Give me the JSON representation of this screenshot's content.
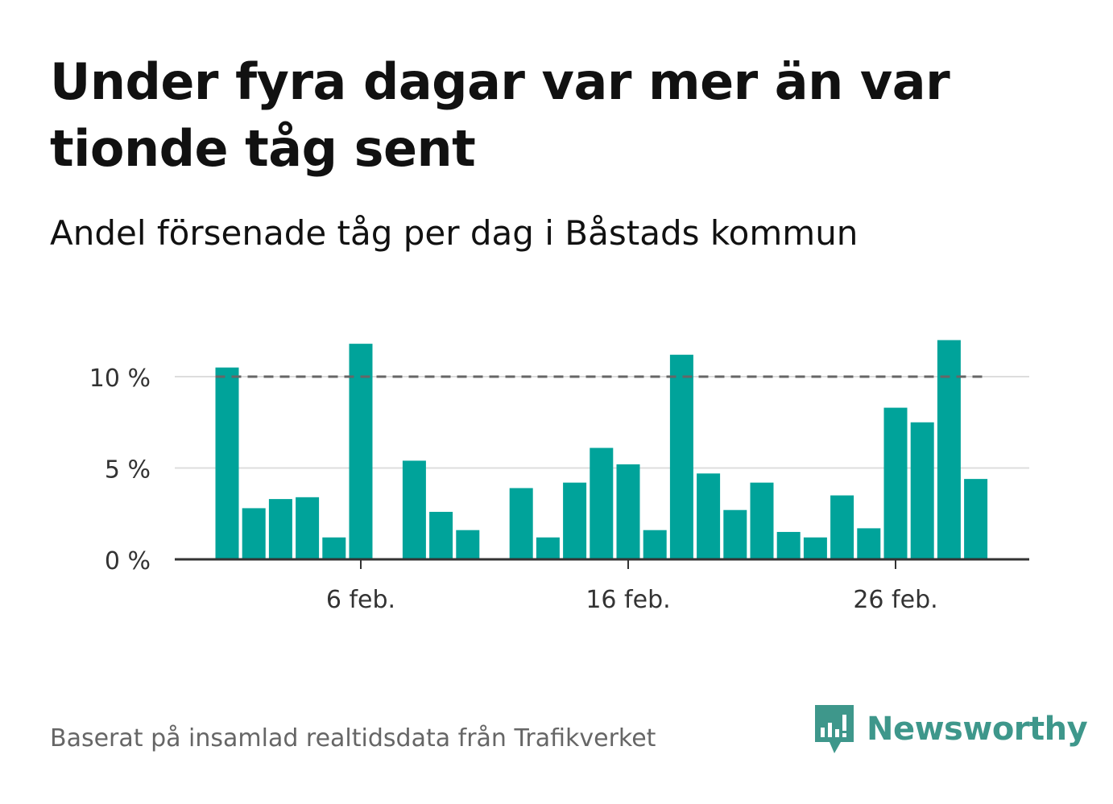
{
  "title": "Under fyra dagar var mer än var tionde tåg sent",
  "subtitle": "Andel försenade tåg per dag i Båstads kommun",
  "source": "Baserat på insamlad realtidsdata från Trafikverket",
  "logo": {
    "text": "Newsworthy",
    "icon": "newsworthy-bar-speech-icon"
  },
  "colors": {
    "bar": "#00a39a",
    "reference_line": "#666666",
    "grid": "#dddddd",
    "axis": "#333333",
    "logo": "#3e978b"
  },
  "chart_data": {
    "type": "bar",
    "x": [
      "2024-02-01",
      "2024-02-02",
      "2024-02-03",
      "2024-02-04",
      "2024-02-05",
      "2024-02-06",
      "2024-02-07",
      "2024-02-08",
      "2024-02-09",
      "2024-02-10",
      "2024-02-11",
      "2024-02-12",
      "2024-02-13",
      "2024-02-14",
      "2024-02-15",
      "2024-02-16",
      "2024-02-17",
      "2024-02-18",
      "2024-02-19",
      "2024-02-20",
      "2024-02-21",
      "2024-02-22",
      "2024-02-23",
      "2024-02-24",
      "2024-02-25",
      "2024-02-26",
      "2024-02-27",
      "2024-02-28",
      "2024-02-29"
    ],
    "values": [
      10.5,
      2.8,
      3.3,
      3.4,
      1.2,
      11.8,
      null,
      5.4,
      2.6,
      1.6,
      null,
      3.9,
      1.2,
      4.2,
      6.1,
      5.2,
      1.6,
      11.2,
      4.7,
      2.7,
      4.2,
      1.5,
      1.2,
      3.5,
      1.7,
      8.3,
      7.5,
      12.0,
      4.4
    ],
    "ylim": [
      0,
      12.5
    ],
    "y_ticks": [
      0,
      5,
      10
    ],
    "y_tick_labels": [
      "0 %",
      "5 %",
      "10 %"
    ],
    "x_tick_labels": [
      "6 feb.",
      "16 feb.",
      "26 feb."
    ],
    "reference_line": 10,
    "grid": true
  }
}
